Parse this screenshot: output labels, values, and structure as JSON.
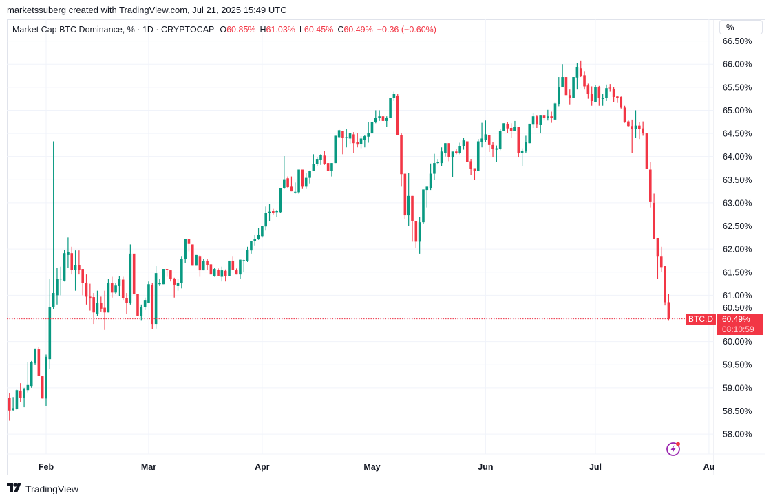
{
  "attribution": "marketssuberg created with TradingView.com, Jul 21, 2025 15:49 UTC",
  "legend": {
    "title": "Market Cap BTC Dominance, % · 1D · CRYPTOCAP",
    "o_label": "O",
    "o_value": "60.85%",
    "h_label": "H",
    "h_value": "61.03%",
    "l_label": "L",
    "l_value": "60.45%",
    "c_label": "C",
    "c_value": "60.49%",
    "change": "−0.36 (−0.60%)"
  },
  "scale_button": "%",
  "last_price": {
    "symbol": "BTC.D",
    "value": "60.49%",
    "countdown": "08:10:59"
  },
  "brand": "TradingView",
  "icons": {
    "alert": "lightning-bolt-icon",
    "logo": "tradingview-logo-icon"
  },
  "colors": {
    "up": "#089981",
    "down": "#f23645",
    "grid": "#f0f3fa",
    "alert_icon": "#9c27b0"
  },
  "chart_data": {
    "type": "candlestick",
    "title": "Market Cap BTC Dominance, % · 1D · CRYPTOCAP",
    "year": 2025,
    "ylim": [
      57.57,
      66.97
    ],
    "yticks": [
      "58.00%",
      "58.50%",
      "59.00%",
      "59.50%",
      "60.00%",
      "60.50%",
      "61.00%",
      "61.50%",
      "62.00%",
      "62.50%",
      "63.00%",
      "63.50%",
      "64.00%",
      "64.50%",
      "65.00%",
      "65.50%",
      "66.00%",
      "66.50%"
    ],
    "ytick_values": [
      58,
      58.5,
      59,
      59.5,
      60,
      60.5,
      61,
      61.5,
      62,
      62.5,
      63,
      63.5,
      64,
      64.5,
      65,
      65.5,
      66,
      66.5
    ],
    "xticks": [
      [
        "02-01",
        "Feb"
      ],
      [
        "03-01",
        "Mar"
      ],
      [
        "04-01",
        "Apr"
      ],
      [
        "05-01",
        "May"
      ],
      [
        "06-01",
        "Jun"
      ],
      [
        "07-01",
        "Jul"
      ],
      [
        "08-01",
        "Au"
      ]
    ],
    "grid": true,
    "last_price_line": 60.49,
    "candles_format": [
      "date",
      "open",
      "high",
      "low",
      "close"
    ],
    "candles": [
      [
        "01-22",
        58.79,
        58.88,
        58.29,
        58.51
      ],
      [
        "01-23",
        58.52,
        58.8,
        58.5,
        58.56
      ],
      [
        "01-24",
        58.54,
        58.97,
        58.52,
        58.95
      ],
      [
        "01-25",
        58.94,
        59.1,
        58.7,
        58.79
      ],
      [
        "01-26",
        58.79,
        59.0,
        58.58,
        58.97
      ],
      [
        "01-27",
        58.95,
        59.56,
        58.9,
        59.06
      ],
      [
        "01-28",
        59.04,
        59.58,
        59.0,
        59.56
      ],
      [
        "01-29",
        59.53,
        59.85,
        59.5,
        59.83
      ],
      [
        "01-30",
        59.83,
        59.88,
        59.26,
        59.26
      ],
      [
        "01-31",
        59.25,
        59.25,
        58.77,
        58.77
      ],
      [
        "02-01",
        58.77,
        59.72,
        58.6,
        59.67
      ],
      [
        "02-02",
        59.62,
        61.35,
        59.4,
        60.75
      ],
      [
        "02-03",
        60.74,
        64.33,
        60.7,
        61.05
      ],
      [
        "02-04",
        61.0,
        61.6,
        60.8,
        61.36
      ],
      [
        "02-05",
        61.36,
        61.62,
        61.0,
        61.36
      ],
      [
        "02-06",
        61.32,
        61.98,
        61.3,
        61.91
      ],
      [
        "02-07",
        61.87,
        62.25,
        61.6,
        61.93
      ],
      [
        "02-08",
        61.91,
        62.05,
        61.45,
        61.55
      ],
      [
        "02-09",
        61.55,
        61.97,
        61.1,
        61.66
      ],
      [
        "02-10",
        61.66,
        61.97,
        61.45,
        61.55
      ],
      [
        "02-11",
        61.57,
        61.57,
        61.0,
        61.26
      ],
      [
        "02-12",
        61.27,
        61.45,
        60.8,
        60.97
      ],
      [
        "02-13",
        60.97,
        61.25,
        60.67,
        60.93
      ],
      [
        "02-14",
        60.96,
        61.05,
        60.38,
        60.63
      ],
      [
        "02-15",
        60.6,
        61.1,
        60.55,
        60.84
      ],
      [
        "02-16",
        60.84,
        60.97,
        60.65,
        60.71
      ],
      [
        "02-17",
        60.73,
        61.1,
        60.25,
        60.63
      ],
      [
        "02-18",
        60.63,
        61.36,
        60.63,
        61.27
      ],
      [
        "02-19",
        61.27,
        61.4,
        60.95,
        61.06
      ],
      [
        "02-20",
        61.06,
        61.26,
        61.02,
        61.21
      ],
      [
        "02-21",
        61.2,
        61.42,
        60.98,
        61.36
      ],
      [
        "02-22",
        61.34,
        61.4,
        60.9,
        60.94
      ],
      [
        "02-23",
        60.94,
        61.05,
        60.6,
        60.84
      ],
      [
        "02-24",
        60.84,
        62.1,
        60.8,
        61.9
      ],
      [
        "02-25",
        61.9,
        61.9,
        61.02,
        61.02
      ],
      [
        "02-26",
        61.03,
        61.03,
        60.56,
        60.56
      ],
      [
        "02-27",
        60.56,
        60.8,
        60.45,
        60.75
      ],
      [
        "02-28",
        60.75,
        60.95,
        60.68,
        60.9
      ],
      [
        "03-01",
        60.84,
        61.3,
        60.84,
        61.24
      ],
      [
        "03-02",
        61.22,
        61.26,
        60.27,
        60.38
      ],
      [
        "03-03",
        60.38,
        61.63,
        60.28,
        61.48
      ],
      [
        "03-04",
        61.24,
        61.35,
        61.2,
        61.27
      ],
      [
        "03-05",
        61.24,
        61.57,
        61.24,
        61.57
      ],
      [
        "03-06",
        61.57,
        61.57,
        61.4,
        61.55
      ],
      [
        "03-07",
        61.54,
        61.54,
        61.3,
        61.36
      ],
      [
        "03-08",
        61.36,
        61.38,
        60.95,
        61.23
      ],
      [
        "03-09",
        61.2,
        61.35,
        61.1,
        61.27
      ],
      [
        "03-10",
        61.26,
        61.85,
        61.15,
        61.79
      ],
      [
        "03-11",
        61.78,
        62.22,
        61.7,
        62.22
      ],
      [
        "03-12",
        62.22,
        62.22,
        61.95,
        62.11
      ],
      [
        "03-13",
        62.1,
        62.1,
        61.64,
        61.64
      ],
      [
        "03-14",
        61.64,
        61.87,
        61.64,
        61.87
      ],
      [
        "03-15",
        61.85,
        61.87,
        61.4,
        61.54
      ],
      [
        "03-16",
        61.54,
        61.78,
        61.54,
        61.74
      ],
      [
        "03-17",
        61.75,
        61.78,
        61.55,
        61.66
      ],
      [
        "03-18",
        61.67,
        61.67,
        61.45,
        61.45
      ],
      [
        "03-19",
        61.42,
        61.6,
        61.4,
        61.57
      ],
      [
        "03-20",
        61.55,
        61.58,
        61.42,
        61.42
      ],
      [
        "03-21",
        61.4,
        61.62,
        61.3,
        61.54
      ],
      [
        "03-22",
        61.53,
        61.56,
        61.3,
        61.41
      ],
      [
        "03-23",
        61.41,
        61.75,
        61.41,
        61.75
      ],
      [
        "03-24",
        61.75,
        61.85,
        61.55,
        61.55
      ],
      [
        "03-25",
        61.54,
        61.58,
        61.45,
        61.45
      ],
      [
        "03-26",
        61.45,
        61.77,
        61.35,
        61.77
      ],
      [
        "03-27",
        61.76,
        61.77,
        61.5,
        61.76
      ],
      [
        "03-28",
        61.74,
        62.05,
        61.72,
        61.98
      ],
      [
        "03-29",
        61.97,
        62.18,
        61.9,
        62.18
      ],
      [
        "03-30",
        62.18,
        62.3,
        62.08,
        62.22
      ],
      [
        "03-31",
        62.22,
        62.45,
        62.2,
        62.3
      ],
      [
        "04-01",
        62.28,
        62.5,
        62.25,
        62.5
      ],
      [
        "04-02",
        62.49,
        62.92,
        62.4,
        62.79
      ],
      [
        "04-03",
        62.79,
        62.97,
        62.6,
        62.81
      ],
      [
        "04-04",
        62.82,
        62.87,
        62.75,
        62.79
      ],
      [
        "04-05",
        62.8,
        62.85,
        62.7,
        62.82
      ],
      [
        "04-06",
        62.8,
        63.32,
        62.78,
        63.32
      ],
      [
        "04-07",
        63.32,
        64.01,
        63.3,
        63.51
      ],
      [
        "04-08",
        63.53,
        63.57,
        63.32,
        63.34
      ],
      [
        "04-09",
        63.35,
        63.57,
        63.25,
        63.25
      ],
      [
        "04-10",
        63.24,
        63.44,
        63.2,
        63.24
      ],
      [
        "04-11",
        63.23,
        63.72,
        63.2,
        63.72
      ],
      [
        "04-12",
        63.72,
        63.72,
        63.3,
        63.35
      ],
      [
        "04-13",
        63.35,
        63.64,
        63.3,
        63.54
      ],
      [
        "04-14",
        63.54,
        63.7,
        63.42,
        63.69
      ],
      [
        "04-15",
        63.69,
        64.05,
        63.69,
        63.84
      ],
      [
        "04-16",
        63.84,
        63.98,
        63.8,
        63.95
      ],
      [
        "04-17",
        63.93,
        64.05,
        63.82,
        64.04
      ],
      [
        "04-18",
        64.02,
        64.12,
        63.82,
        63.84
      ],
      [
        "04-19",
        63.86,
        63.86,
        63.69,
        63.69
      ],
      [
        "04-20",
        63.69,
        63.86,
        63.57,
        63.86
      ],
      [
        "04-21",
        63.86,
        64.45,
        63.86,
        64.45
      ],
      [
        "04-22",
        64.42,
        64.58,
        64.4,
        64.57
      ],
      [
        "04-23",
        64.56,
        64.56,
        64.05,
        64.41
      ],
      [
        "04-24",
        64.42,
        64.6,
        64.2,
        64.42
      ],
      [
        "04-25",
        64.39,
        64.51,
        64.28,
        64.51
      ],
      [
        "04-26",
        64.48,
        64.53,
        64.08,
        64.29
      ],
      [
        "04-27",
        64.32,
        64.51,
        64.2,
        64.26
      ],
      [
        "04-28",
        64.27,
        64.44,
        64.18,
        64.39
      ],
      [
        "04-29",
        64.36,
        64.46,
        64.2,
        64.44
      ],
      [
        "04-30",
        64.43,
        64.75,
        64.3,
        64.51
      ],
      [
        "05-01",
        64.5,
        64.75,
        64.5,
        64.75
      ],
      [
        "05-02",
        64.74,
        65.0,
        64.72,
        64.84
      ],
      [
        "05-03",
        64.83,
        65.0,
        64.77,
        64.87
      ],
      [
        "05-04",
        64.87,
        64.87,
        64.77,
        64.77
      ],
      [
        "05-05",
        64.77,
        64.87,
        64.65,
        64.84
      ],
      [
        "05-06",
        64.84,
        65.27,
        64.84,
        65.27
      ],
      [
        "05-07",
        65.27,
        65.4,
        65.2,
        65.36
      ],
      [
        "05-08",
        65.32,
        65.35,
        64.46,
        64.46
      ],
      [
        "05-09",
        64.47,
        64.5,
        63.35,
        63.62
      ],
      [
        "05-10",
        63.63,
        63.63,
        62.65,
        62.73
      ],
      [
        "05-11",
        62.73,
        63.64,
        62.5,
        63.15
      ],
      [
        "05-12",
        63.15,
        63.15,
        62.16,
        62.61
      ],
      [
        "05-13",
        62.61,
        62.61,
        62.02,
        62.16
      ],
      [
        "05-14",
        62.16,
        62.7,
        61.9,
        62.58
      ],
      [
        "05-15",
        62.58,
        63.29,
        62.55,
        63.29
      ],
      [
        "05-16",
        63.28,
        63.35,
        62.9,
        63.35
      ],
      [
        "05-17",
        63.32,
        63.85,
        63.28,
        63.63
      ],
      [
        "05-18",
        63.63,
        64.06,
        63.5,
        63.86
      ],
      [
        "05-19",
        63.86,
        63.95,
        63.83,
        63.88
      ],
      [
        "05-20",
        63.86,
        64.2,
        63.8,
        64.11
      ],
      [
        "05-21",
        64.08,
        64.29,
        64.0,
        64.29
      ],
      [
        "05-22",
        64.29,
        64.29,
        63.9,
        63.99
      ],
      [
        "05-23",
        63.98,
        64.1,
        63.55,
        64.11
      ],
      [
        "05-24",
        64.11,
        64.16,
        64.05,
        64.07
      ],
      [
        "05-25",
        64.07,
        64.3,
        64.05,
        64.22
      ],
      [
        "05-26",
        64.22,
        64.4,
        64.15,
        64.35
      ],
      [
        "05-27",
        64.33,
        64.33,
        63.89,
        63.89
      ],
      [
        "05-28",
        63.9,
        63.95,
        63.6,
        63.74
      ],
      [
        "05-29",
        63.75,
        63.75,
        63.5,
        63.69
      ],
      [
        "05-30",
        63.69,
        64.38,
        63.69,
        64.33
      ],
      [
        "05-31",
        64.32,
        64.73,
        64.2,
        64.39
      ],
      [
        "06-01",
        64.36,
        64.78,
        64.31,
        64.48
      ],
      [
        "06-02",
        64.47,
        64.47,
        64.1,
        64.25
      ],
      [
        "06-03",
        64.25,
        64.32,
        63.98,
        64.16
      ],
      [
        "06-04",
        64.15,
        64.24,
        63.88,
        64.18
      ],
      [
        "06-05",
        64.16,
        64.6,
        64.14,
        64.56
      ],
      [
        "06-06",
        64.55,
        64.72,
        64.55,
        64.72
      ],
      [
        "06-07",
        64.71,
        64.75,
        64.51,
        64.61
      ],
      [
        "06-08",
        64.62,
        64.72,
        64.4,
        64.55
      ],
      [
        "06-09",
        64.55,
        64.77,
        64.55,
        64.64
      ],
      [
        "06-10",
        64.64,
        64.64,
        63.98,
        64.07
      ],
      [
        "06-11",
        64.07,
        64.18,
        63.8,
        64.13
      ],
      [
        "06-12",
        64.11,
        64.45,
        64.07,
        64.32
      ],
      [
        "06-13",
        64.29,
        64.71,
        64.29,
        64.71
      ],
      [
        "06-14",
        64.69,
        64.94,
        64.62,
        64.87
      ],
      [
        "06-15",
        64.87,
        64.9,
        64.62,
        64.69
      ],
      [
        "06-16",
        64.68,
        64.9,
        64.5,
        64.9
      ],
      [
        "06-17",
        64.9,
        64.9,
        64.78,
        64.83
      ],
      [
        "06-18",
        64.83,
        65.01,
        64.78,
        64.87
      ],
      [
        "06-19",
        64.87,
        64.97,
        64.73,
        64.84
      ],
      [
        "06-20",
        64.8,
        65.17,
        64.8,
        65.15
      ],
      [
        "06-21",
        65.14,
        65.72,
        65.09,
        65.51
      ],
      [
        "06-22",
        65.5,
        66.0,
        65.5,
        65.72
      ],
      [
        "06-23",
        65.72,
        65.72,
        65.33,
        65.33
      ],
      [
        "06-24",
        65.33,
        65.45,
        65.13,
        65.27
      ],
      [
        "06-25",
        65.26,
        65.72,
        65.26,
        65.72
      ],
      [
        "06-26",
        65.71,
        66.02,
        65.45,
        65.93
      ],
      [
        "06-27",
        65.91,
        66.08,
        65.72,
        65.75
      ],
      [
        "06-28",
        65.76,
        65.85,
        65.45,
        65.52
      ],
      [
        "06-29",
        65.54,
        65.58,
        65.25,
        65.35
      ],
      [
        "06-30",
        65.36,
        65.52,
        65.1,
        65.2
      ],
      [
        "07-01",
        65.18,
        65.55,
        65.17,
        65.51
      ],
      [
        "07-02",
        65.51,
        65.53,
        65.1,
        65.27
      ],
      [
        "07-03",
        65.26,
        65.35,
        65.1,
        65.26
      ],
      [
        "07-04",
        65.26,
        65.56,
        65.2,
        65.48
      ],
      [
        "07-05",
        65.49,
        65.57,
        65.4,
        65.48
      ],
      [
        "07-06",
        65.46,
        65.51,
        65.18,
        65.29
      ],
      [
        "07-07",
        65.3,
        65.31,
        65.16,
        65.27
      ],
      [
        "07-08",
        65.29,
        65.3,
        65.04,
        65.06
      ],
      [
        "07-09",
        65.06,
        65.1,
        64.73,
        64.75
      ],
      [
        "07-10",
        64.76,
        64.78,
        64.64,
        64.66
      ],
      [
        "07-11",
        64.66,
        64.8,
        64.08,
        64.6
      ],
      [
        "07-12",
        64.6,
        65.0,
        64.4,
        64.67
      ],
      [
        "07-13",
        64.67,
        64.75,
        64.38,
        64.6
      ],
      [
        "07-14",
        64.61,
        64.76,
        64.45,
        64.5
      ],
      [
        "07-15",
        64.5,
        64.5,
        63.74,
        63.74
      ],
      [
        "07-16",
        63.72,
        63.88,
        62.9,
        63.03
      ],
      [
        "07-17",
        63.0,
        63.2,
        62.22,
        62.22
      ],
      [
        "07-18",
        62.24,
        62.24,
        61.35,
        61.85
      ],
      [
        "07-19",
        61.85,
        62.05,
        61.5,
        61.61
      ],
      [
        "07-20",
        61.63,
        61.63,
        60.78,
        60.85
      ],
      [
        "07-21",
        60.85,
        61.03,
        60.45,
        60.49
      ]
    ]
  }
}
